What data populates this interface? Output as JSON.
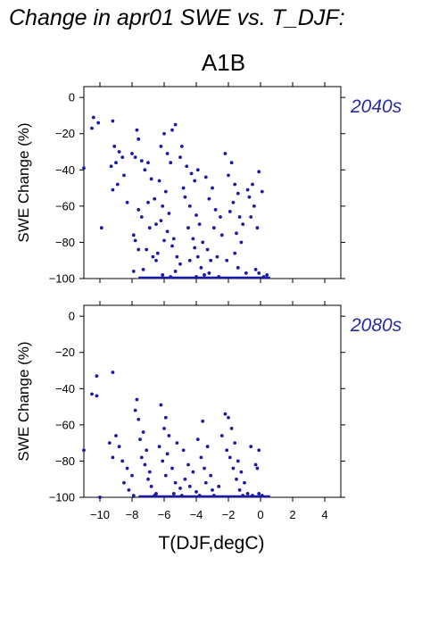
{
  "figure": {
    "title": "Change in apr01 SWE vs. T_DJF:",
    "scenario": "A1B"
  },
  "chart_data": [
    {
      "type": "scatter",
      "panel_label": "2040s",
      "xlabel": "",
      "ylabel": "SWE Change (%)",
      "xlim": [
        -11,
        5
      ],
      "ylim": [
        -100,
        6
      ],
      "xticks": [
        -10,
        -8,
        -6,
        -4,
        -2,
        0,
        2,
        4
      ],
      "yticks": [
        0,
        -20,
        -40,
        -60,
        -80,
        -100
      ],
      "x_tick_labels_shown": false,
      "marker_color": "#1a1aa6",
      "points": [
        [
          -10.4,
          -11
        ],
        [
          -10.1,
          -14
        ],
        [
          -10.5,
          -17
        ],
        [
          -9.2,
          -13
        ],
        [
          -11,
          -39
        ],
        [
          -9.9,
          -72
        ],
        [
          -9.1,
          -27
        ],
        [
          -8.8,
          -30
        ],
        [
          -8.6,
          -33
        ],
        [
          -9.0,
          -36
        ],
        [
          -9.3,
          -38
        ],
        [
          -8.5,
          -43
        ],
        [
          -8.9,
          -48
        ],
        [
          -9.2,
          -51
        ],
        [
          -8.3,
          -58
        ],
        [
          -8.0,
          -31
        ],
        [
          -7.8,
          -33
        ],
        [
          -7.7,
          -18
        ],
        [
          -7.6,
          -23
        ],
        [
          -7.4,
          -35
        ],
        [
          -7.2,
          -40
        ],
        [
          -7.0,
          -36
        ],
        [
          -7.6,
          -62
        ],
        [
          -7.4,
          -66
        ],
        [
          -7.9,
          -76
        ],
        [
          -7.8,
          -79
        ],
        [
          -7.6,
          -84
        ],
        [
          -7.9,
          -96
        ],
        [
          -7.0,
          -58
        ],
        [
          -6.8,
          -45
        ],
        [
          -6.5,
          -70
        ],
        [
          -6.9,
          -72
        ],
        [
          -7.1,
          -84
        ],
        [
          -6.7,
          -88
        ],
        [
          -6.5,
          -90
        ],
        [
          -6.0,
          -20
        ],
        [
          -6.2,
          -27
        ],
        [
          -5.8,
          -31
        ],
        [
          -5.6,
          -36
        ],
        [
          -5.3,
          -15
        ],
        [
          -5.5,
          -18
        ],
        [
          -6.3,
          -46
        ],
        [
          -5.9,
          -52
        ],
        [
          -6.1,
          -60
        ],
        [
          -5.7,
          -64
        ],
        [
          -6.2,
          -68
        ],
        [
          -5.8,
          -74
        ],
        [
          -6.0,
          -79
        ],
        [
          -5.5,
          -82
        ],
        [
          -5.2,
          -88
        ],
        [
          -5.0,
          -92
        ],
        [
          -5.3,
          -96
        ],
        [
          -5.6,
          -99
        ],
        [
          -6.1,
          -98
        ],
        [
          -4.9,
          -27
        ],
        [
          -4.6,
          -38
        ],
        [
          -4.3,
          -42
        ],
        [
          -4.1,
          -46
        ],
        [
          -3.9,
          -40
        ],
        [
          -4.7,
          -55
        ],
        [
          -4.4,
          -60
        ],
        [
          -4.0,
          -65
        ],
        [
          -3.8,
          -70
        ],
        [
          -4.5,
          -72
        ],
        [
          -4.2,
          -78
        ],
        [
          -3.6,
          -80
        ],
        [
          -3.3,
          -84
        ],
        [
          -3.9,
          -88
        ],
        [
          -4.4,
          -90
        ],
        [
          -3.7,
          -94
        ],
        [
          -3.2,
          -97
        ],
        [
          -4.0,
          -99
        ],
        [
          -3.5,
          -98
        ],
        [
          -3.0,
          -50
        ],
        [
          -3.2,
          -56
        ],
        [
          -2.8,
          -62
        ],
        [
          -2.5,
          -66
        ],
        [
          -2.9,
          -72
        ],
        [
          -2.4,
          -76
        ],
        [
          -2.2,
          -31
        ],
        [
          -1.8,
          -36
        ],
        [
          -2.0,
          -43
        ],
        [
          -1.6,
          -48
        ],
        [
          -1.4,
          -53
        ],
        [
          -1.7,
          -58
        ],
        [
          -1.9,
          -63
        ],
        [
          -1.3,
          -66
        ],
        [
          -1.1,
          -70
        ],
        [
          -1.5,
          -75
        ],
        [
          -1.2,
          -80
        ],
        [
          -1.6,
          -86
        ],
        [
          -2.1,
          -90
        ],
        [
          -1.4,
          -94
        ],
        [
          -0.9,
          -97
        ],
        [
          -2.6,
          -99
        ],
        [
          -0.8,
          -51
        ],
        [
          -0.5,
          -48
        ],
        [
          -0.7,
          -55
        ],
        [
          -0.4,
          -60
        ],
        [
          -0.6,
          -66
        ],
        [
          -0.2,
          -72
        ],
        [
          -0.1,
          -41
        ],
        [
          0.1,
          -52
        ],
        [
          -0.3,
          -95
        ],
        [
          -0.1,
          -97
        ],
        [
          0.2,
          -99
        ],
        [
          0.4,
          -98
        ],
        [
          -5.0,
          -33
        ],
        [
          -4.8,
          -50
        ],
        [
          -6.6,
          -56
        ],
        [
          -7.3,
          -95
        ],
        [
          -3.4,
          -44
        ],
        [
          -2.7,
          -88
        ],
        [
          -5.4,
          -78
        ],
        [
          -6.4,
          -86
        ],
        [
          -4.1,
          -83
        ],
        [
          -3.1,
          -90
        ]
      ]
    },
    {
      "type": "scatter",
      "panel_label": "2080s",
      "xlabel": "T(DJF,degC)",
      "ylabel": "SWE Change (%)",
      "xlim": [
        -11,
        5
      ],
      "ylim": [
        -100,
        6
      ],
      "xticks": [
        -10,
        -8,
        -6,
        -4,
        -2,
        0,
        2,
        4
      ],
      "yticks": [
        0,
        -20,
        -40,
        -60,
        -80,
        -100
      ],
      "x_tick_labels_shown": true,
      "marker_color": "#1a1aa6",
      "points": [
        [
          -10.2,
          -33
        ],
        [
          -10.5,
          -43
        ],
        [
          -10.2,
          -44
        ],
        [
          -9.2,
          -31
        ],
        [
          -11,
          -74
        ],
        [
          -10.0,
          -100
        ],
        [
          -9.4,
          -70
        ],
        [
          -9.0,
          -66
        ],
        [
          -8.8,
          -72
        ],
        [
          -9.2,
          -78
        ],
        [
          -8.6,
          -80
        ],
        [
          -8.3,
          -84
        ],
        [
          -8.0,
          -88
        ],
        [
          -8.5,
          -92
        ],
        [
          -8.2,
          -96
        ],
        [
          -7.7,
          -46
        ],
        [
          -7.8,
          -52
        ],
        [
          -7.6,
          -57
        ],
        [
          -7.3,
          -64
        ],
        [
          -7.5,
          -68
        ],
        [
          -7.1,
          -74
        ],
        [
          -7.4,
          -78
        ],
        [
          -7.2,
          -82
        ],
        [
          -6.9,
          -86
        ],
        [
          -7.0,
          -90
        ],
        [
          -6.8,
          -94
        ],
        [
          -6.5,
          -98
        ],
        [
          -6.2,
          -49
        ],
        [
          -5.9,
          -56
        ],
        [
          -6.0,
          -62
        ],
        [
          -5.7,
          -66
        ],
        [
          -6.3,
          -72
        ],
        [
          -5.8,
          -76
        ],
        [
          -6.1,
          -80
        ],
        [
          -5.5,
          -84
        ],
        [
          -5.9,
          -88
        ],
        [
          -5.3,
          -92
        ],
        [
          -5.0,
          -95
        ],
        [
          -5.4,
          -98
        ],
        [
          -5.2,
          -70
        ],
        [
          -4.8,
          -74
        ],
        [
          -4.5,
          -82
        ],
        [
          -4.2,
          -86
        ],
        [
          -4.7,
          -90
        ],
        [
          -4.4,
          -94
        ],
        [
          -4.0,
          -97
        ],
        [
          -3.6,
          -58
        ],
        [
          -3.9,
          -68
        ],
        [
          -3.3,
          -72
        ],
        [
          -3.7,
          -78
        ],
        [
          -3.5,
          -84
        ],
        [
          -3.1,
          -88
        ],
        [
          -3.4,
          -92
        ],
        [
          -3.0,
          -96
        ],
        [
          -2.9,
          -99
        ],
        [
          -2.2,
          -54
        ],
        [
          -2.0,
          -56
        ],
        [
          -1.8,
          -62
        ],
        [
          -2.4,
          -66
        ],
        [
          -1.6,
          -70
        ],
        [
          -2.1,
          -74
        ],
        [
          -1.9,
          -78
        ],
        [
          -1.4,
          -80
        ],
        [
          -1.7,
          -84
        ],
        [
          -1.2,
          -86
        ],
        [
          -1.5,
          -90
        ],
        [
          -1.0,
          -92
        ],
        [
          -1.3,
          -96
        ],
        [
          -0.8,
          -98
        ],
        [
          -0.6,
          -72
        ],
        [
          -0.3,
          -82
        ],
        [
          -0.1,
          -74
        ],
        [
          -0.2,
          -84
        ],
        [
          0.1,
          -99
        ],
        [
          -0.1,
          -98
        ],
        [
          -2.6,
          -94
        ],
        [
          -3.8,
          -99
        ],
        [
          -4.9,
          -99
        ],
        [
          -6.6,
          -99
        ],
        [
          -7.9,
          -99
        ],
        [
          -0.5,
          -99
        ],
        [
          -1.1,
          -99
        ]
      ]
    }
  ]
}
